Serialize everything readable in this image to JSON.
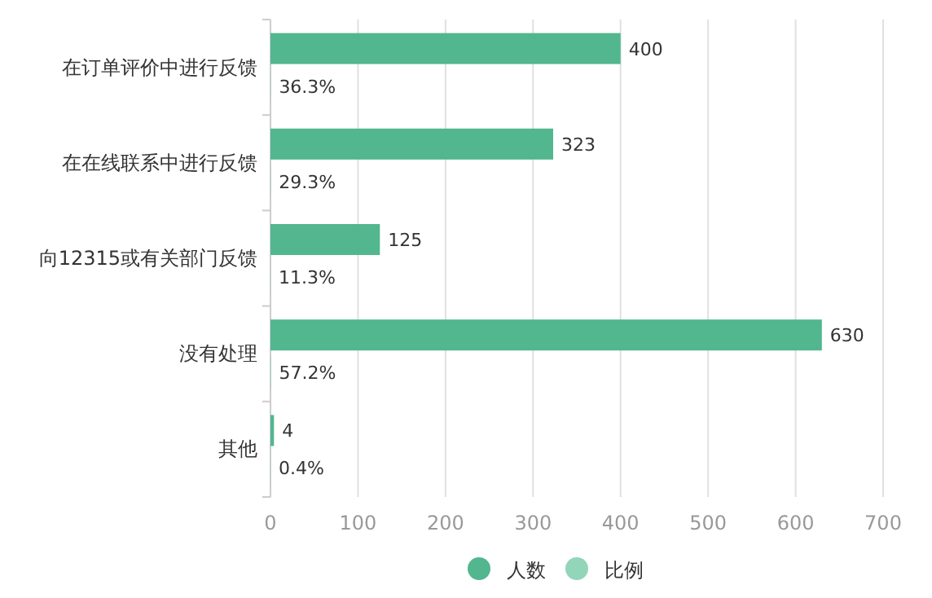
{
  "chart_data": {
    "type": "bar",
    "orientation": "horizontal",
    "categories": [
      "在订单评价中进行反馈",
      "在在线联系中进行反馈",
      "向12315或有关部门反馈",
      "没有处理",
      "其他"
    ],
    "series": [
      {
        "name": "人数",
        "color": "#52b68f",
        "values": [
          400,
          323,
          125,
          630,
          4
        ],
        "value_labels": [
          "400",
          "323",
          "125",
          "630",
          "4"
        ]
      },
      {
        "name": "比例",
        "color": "#93d5b9",
        "values": [
          0.363,
          0.293,
          0.113,
          0.572,
          0.004
        ],
        "value_labels": [
          "36.3%",
          "29.3%",
          "11.3%",
          "57.2%",
          "0.4%"
        ]
      }
    ],
    "xlim": [
      0,
      700
    ],
    "xticks": [
      0,
      100,
      200,
      300,
      400,
      500,
      600,
      700
    ],
    "grid": "x",
    "legend": "bottom"
  }
}
